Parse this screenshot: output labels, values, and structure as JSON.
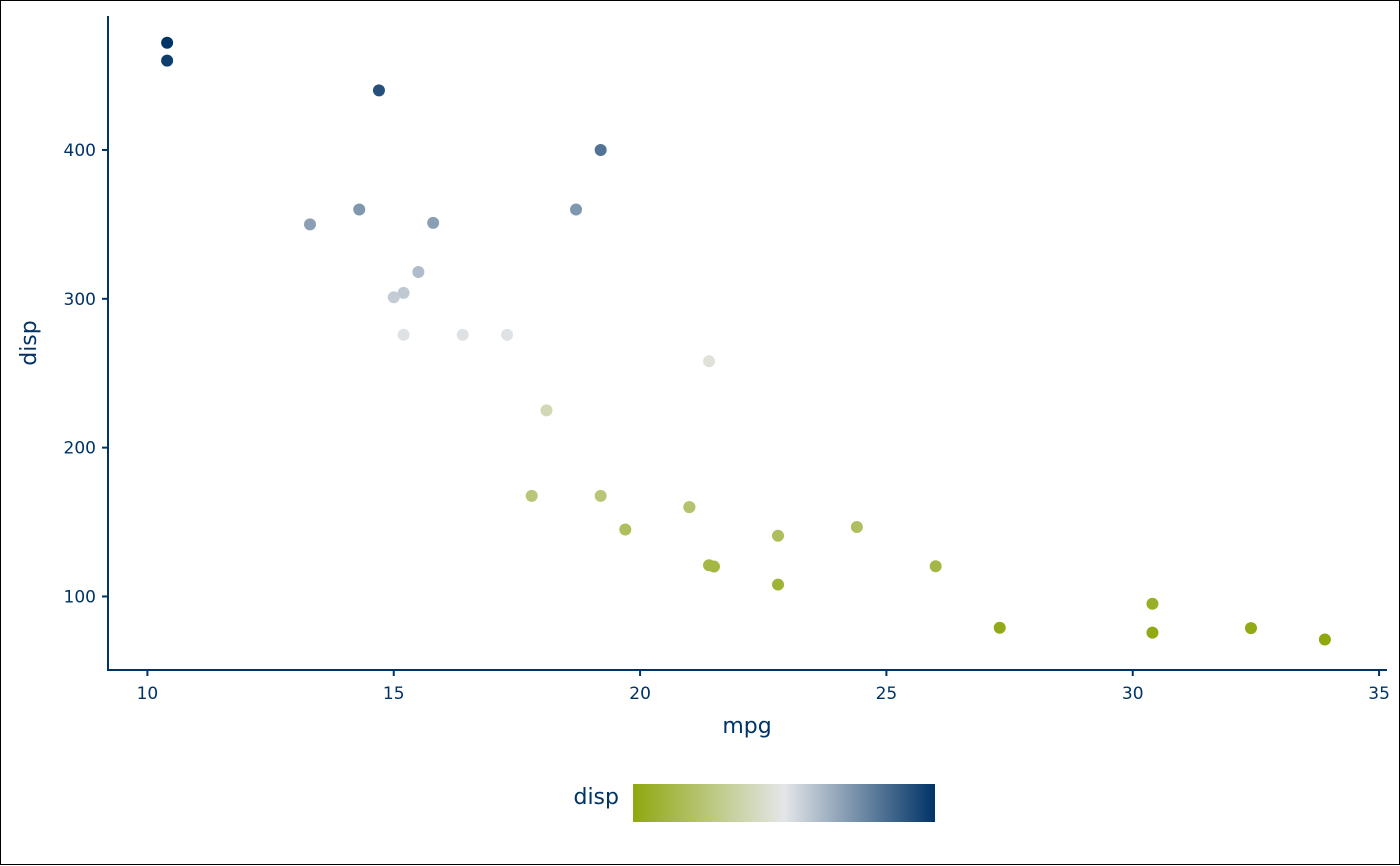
{
  "chart_data": {
    "type": "scatter",
    "xlabel": "mpg",
    "ylabel": "disp",
    "xlim": [
      9.2,
      35.1
    ],
    "ylim": [
      50.6,
      490
    ],
    "x_ticks": [
      10,
      15,
      20,
      25,
      30,
      35
    ],
    "y_ticks": [
      100,
      200,
      300,
      400
    ],
    "grid": false,
    "legend": {
      "title": "disp",
      "placement": "bottom",
      "type": "colorbar",
      "range": [
        71.1,
        472
      ],
      "colors": [
        "#8fa80e",
        "#e4e6e8",
        "#003366"
      ]
    },
    "points": [
      {
        "x": 21.0,
        "y": 160
      },
      {
        "x": 21.0,
        "y": 160
      },
      {
        "x": 22.8,
        "y": 108
      },
      {
        "x": 21.4,
        "y": 258
      },
      {
        "x": 18.7,
        "y": 360
      },
      {
        "x": 18.1,
        "y": 225
      },
      {
        "x": 14.3,
        "y": 360
      },
      {
        "x": 24.4,
        "y": 146.7
      },
      {
        "x": 22.8,
        "y": 140.8
      },
      {
        "x": 19.2,
        "y": 167.6
      },
      {
        "x": 17.8,
        "y": 167.6
      },
      {
        "x": 16.4,
        "y": 275.8
      },
      {
        "x": 17.3,
        "y": 275.8
      },
      {
        "x": 15.2,
        "y": 275.8
      },
      {
        "x": 10.4,
        "y": 472
      },
      {
        "x": 10.4,
        "y": 460
      },
      {
        "x": 14.7,
        "y": 440
      },
      {
        "x": 32.4,
        "y": 78.7
      },
      {
        "x": 30.4,
        "y": 75.7
      },
      {
        "x": 33.9,
        "y": 71.1
      },
      {
        "x": 21.5,
        "y": 120.1
      },
      {
        "x": 15.5,
        "y": 318
      },
      {
        "x": 15.2,
        "y": 304
      },
      {
        "x": 13.3,
        "y": 350
      },
      {
        "x": 19.2,
        "y": 400
      },
      {
        "x": 27.3,
        "y": 79
      },
      {
        "x": 26.0,
        "y": 120.3
      },
      {
        "x": 30.4,
        "y": 95.1
      },
      {
        "x": 15.8,
        "y": 351
      },
      {
        "x": 19.7,
        "y": 145
      },
      {
        "x": 15.0,
        "y": 301
      },
      {
        "x": 21.4,
        "y": 121
      }
    ]
  }
}
